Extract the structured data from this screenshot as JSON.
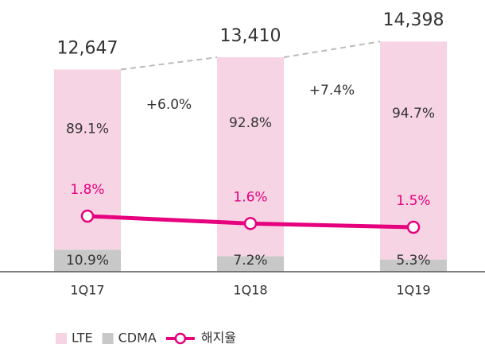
{
  "chart_data": {
    "type": "stacked_bar_line",
    "categories": [
      "1Q17",
      "1Q18",
      "1Q19"
    ],
    "totals": {
      "values": [
        12647,
        13410,
        14398
      ],
      "value_labels": [
        "12,647",
        "13,410",
        "14,398"
      ]
    },
    "series": [
      {
        "name": "LTE",
        "color": "#f7d4e3",
        "values": [
          89.1,
          92.8,
          94.7
        ],
        "value_labels": [
          "89.1%",
          "92.8%",
          "94.7%"
        ]
      },
      {
        "name": "CDMA",
        "color": "#c8c8c8",
        "values": [
          10.9,
          7.2,
          5.3
        ],
        "value_labels": [
          "10.9%",
          "7.2%",
          "5.3%"
        ]
      },
      {
        "name": "해지율",
        "color": "#e6007e",
        "values": [
          1.8,
          1.6,
          1.5
        ],
        "value_labels": [
          "1.8%",
          "1.6%",
          "1.5%"
        ],
        "axis": "y2"
      }
    ],
    "annotations": [
      "+6.0%",
      "+7.4%"
    ],
    "ylim": [
      0,
      16000
    ],
    "y2lim": [
      0.3,
      7.2
    ]
  }
}
